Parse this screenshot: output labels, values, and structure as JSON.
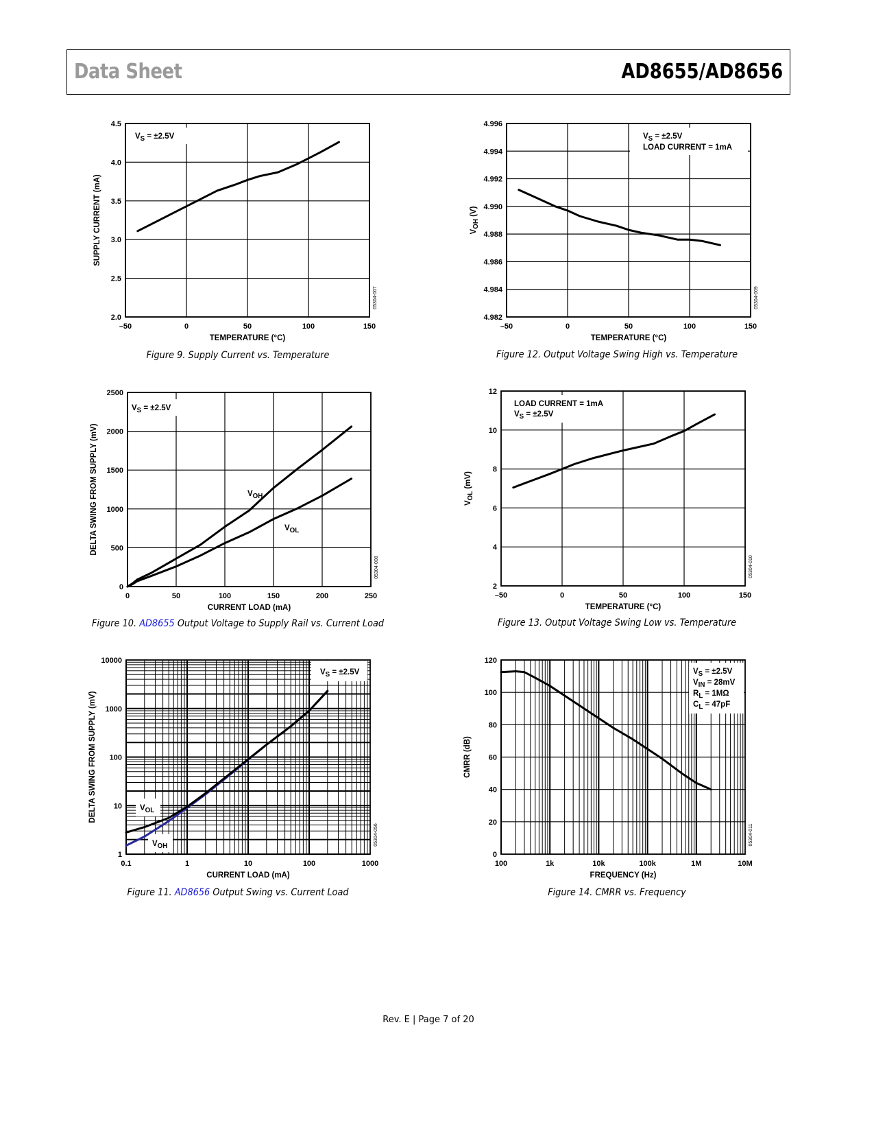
{
  "header": {
    "left": "Data Sheet",
    "right": "AD8655/AD8656"
  },
  "footer": "Rev. E | Page 7 of 20",
  "captions": [
    {
      "pre": "Figure 9. Supply Current vs. Temperature",
      "link": "",
      "post": ""
    },
    {
      "pre": "Figure 12. Output Voltage Swing High vs. Temperature",
      "link": "",
      "post": ""
    },
    {
      "pre": "Figure 10. ",
      "link": "AD8655",
      "post": " Output Voltage to Supply Rail vs. Current Load"
    },
    {
      "pre": "Figure 13. Output Voltage Swing Low vs. Temperature",
      "link": "",
      "post": ""
    },
    {
      "pre": "Figure 11. ",
      "link": "AD8656",
      "post": " Output Swing vs. Current Load"
    },
    {
      "pre": "Figure 14. CMRR vs. Frequency",
      "link": "",
      "post": ""
    }
  ],
  "colors": {
    "link": "#1a1ad6",
    "line": "#000000",
    "voh_blue": "#2a2a9c",
    "header_gray": "#9a9a9a"
  },
  "chart_data": [
    {
      "type": "line",
      "title": "Figure 9. Supply Current vs. Temperature",
      "xlabel": "TEMPERATURE (°C)",
      "ylabel": "SUPPLY CURRENT (mA)",
      "xscale": "linear",
      "yscale": "linear",
      "xlim": [
        -50,
        150
      ],
      "ylim": [
        2.0,
        4.5
      ],
      "xticks": [
        -50,
        0,
        50,
        100,
        150
      ],
      "xtick_labels": [
        "–50",
        "0",
        "50",
        "100",
        "150"
      ],
      "yticks": [
        2.0,
        2.5,
        3.0,
        3.5,
        4.0,
        4.5
      ],
      "ytick_labels": [
        "2.0",
        "2.5",
        "3.0",
        "3.5",
        "4.0",
        "4.5"
      ],
      "grid": true,
      "code": "05304-007",
      "annotations": [
        [
          {
            "t": "V"
          },
          {
            "t": "S",
            "sub": true
          },
          {
            "t": " = ±2.5V"
          }
        ]
      ],
      "series": [
        {
          "name": "Supply Current",
          "color": "#000000",
          "x": [
            -40,
            -25,
            -10,
            0,
            10,
            25,
            40,
            50,
            60,
            75,
            90,
            100,
            110,
            125
          ],
          "y": [
            3.11,
            3.23,
            3.35,
            3.43,
            3.51,
            3.63,
            3.71,
            3.77,
            3.82,
            3.87,
            3.97,
            4.05,
            4.13,
            4.26
          ]
        }
      ]
    },
    {
      "type": "line",
      "title": "Figure 12. Output Voltage Swing High vs. Temperature",
      "xlabel": "TEMPERATURE (°C)",
      "ylabel": [
        {
          "t": "V"
        },
        {
          "t": "OH",
          "sub": true
        },
        {
          "t": " (V)"
        }
      ],
      "xscale": "linear",
      "yscale": "linear",
      "xlim": [
        -50,
        150
      ],
      "ylim": [
        4.982,
        4.996
      ],
      "xticks": [
        -50,
        0,
        50,
        100,
        150
      ],
      "xtick_labels": [
        "–50",
        "0",
        "50",
        "100",
        "150"
      ],
      "yticks": [
        4.982,
        4.984,
        4.986,
        4.988,
        4.99,
        4.992,
        4.994,
        4.996
      ],
      "ytick_labels": [
        "4.982",
        "4.984",
        "4.986",
        "4.988",
        "4.990",
        "4.992",
        "4.994",
        "4.996"
      ],
      "grid": true,
      "code": "05304-009",
      "annotations": [
        [
          {
            "t": "V"
          },
          {
            "t": "S",
            "sub": true
          },
          {
            "t": " = ±2.5V"
          }
        ],
        [
          {
            "t": "LOAD CURRENT = 1mA"
          }
        ]
      ],
      "series": [
        {
          "name": "VOH",
          "color": "#000000",
          "x": [
            -40,
            -25,
            -10,
            0,
            10,
            25,
            40,
            50,
            60,
            75,
            90,
            100,
            110,
            125
          ],
          "y": [
            4.9912,
            4.9906,
            4.99,
            4.9897,
            4.9893,
            4.9889,
            4.9886,
            4.9883,
            4.9881,
            4.9879,
            4.9876,
            4.9876,
            4.9875,
            4.9872
          ]
        }
      ]
    },
    {
      "type": "line",
      "title": "Figure 10. AD8655 Output Voltage to Supply Rail vs. Current Load",
      "xlabel": "CURRENT LOAD (mA)",
      "ylabel": "DELTA SWING FROM SUPPLY (mV)",
      "xscale": "linear",
      "yscale": "linear",
      "xlim": [
        0,
        250
      ],
      "ylim": [
        0,
        2500
      ],
      "xticks": [
        0,
        50,
        100,
        150,
        200,
        250
      ],
      "xtick_labels": [
        "0",
        "50",
        "100",
        "150",
        "200",
        "250"
      ],
      "yticks": [
        0,
        500,
        1000,
        1500,
        2000,
        2500
      ],
      "ytick_labels": [
        "0",
        "500",
        "1000",
        "1500",
        "2000",
        "2500"
      ],
      "grid": true,
      "code": "05304-008",
      "annotations": [
        [
          {
            "t": "V"
          },
          {
            "t": "S",
            "sub": true
          },
          {
            "t": " = ±2.5V"
          }
        ],
        [
          {
            "t": "V"
          },
          {
            "t": "OH",
            "sub": true
          }
        ],
        [
          {
            "t": "V"
          },
          {
            "t": "OL",
            "sub": true
          }
        ]
      ],
      "series": [
        {
          "name": "VOH",
          "color": "#000000",
          "x": [
            0,
            5,
            10,
            25,
            50,
            75,
            100,
            125,
            150,
            175,
            200,
            230
          ],
          "y": [
            0,
            40,
            90,
            180,
            360,
            540,
            770,
            980,
            1270,
            1520,
            1760,
            2060
          ]
        },
        {
          "name": "VOL",
          "color": "#000000",
          "x": [
            0,
            5,
            10,
            25,
            50,
            75,
            100,
            125,
            150,
            175,
            200,
            230
          ],
          "y": [
            0,
            30,
            70,
            140,
            260,
            400,
            560,
            700,
            870,
            1010,
            1170,
            1390
          ]
        }
      ]
    },
    {
      "type": "line",
      "title": "Figure 13. Output Voltage Swing Low vs. Temperature",
      "xlabel": "TEMPERATURE (°C)",
      "ylabel": [
        {
          "t": "V"
        },
        {
          "t": "OL",
          "sub": true
        },
        {
          "t": " (mV)"
        }
      ],
      "xscale": "linear",
      "yscale": "linear",
      "xlim": [
        -50,
        150
      ],
      "ylim": [
        2,
        12
      ],
      "xticks": [
        -50,
        0,
        50,
        100,
        150
      ],
      "xtick_labels": [
        "–50",
        "0",
        "50",
        "100",
        "150"
      ],
      "yticks": [
        2,
        4,
        6,
        8,
        10,
        12
      ],
      "ytick_labels": [
        "2",
        "4",
        "6",
        "8",
        "10",
        "12"
      ],
      "grid": true,
      "code": "05304-010",
      "annotations": [
        [
          {
            "t": "LOAD CURRENT = 1mA"
          }
        ],
        [
          {
            "t": "V"
          },
          {
            "t": "S",
            "sub": true
          },
          {
            "t": " = ±2.5V"
          }
        ]
      ],
      "series": [
        {
          "name": "VOL",
          "color": "#000000",
          "x": [
            -40,
            -25,
            -10,
            0,
            10,
            25,
            50,
            75,
            90,
            100,
            110,
            125
          ],
          "y": [
            7.05,
            7.4,
            7.75,
            8.0,
            8.25,
            8.55,
            8.95,
            9.3,
            9.7,
            9.95,
            10.3,
            10.8
          ]
        }
      ]
    },
    {
      "type": "line",
      "title": "Figure 11. AD8656 Output Swing vs. Current Load",
      "xlabel": "CURRENT LOAD (mA)",
      "ylabel": "DELTA SWING FROM SUPPLY (mV)",
      "xscale": "log",
      "yscale": "log",
      "xlim": [
        0.1,
        1000
      ],
      "ylim": [
        1,
        10000
      ],
      "xticks": [
        0.1,
        1,
        10,
        100,
        1000
      ],
      "xtick_labels": [
        "0.1",
        "1",
        "10",
        "100",
        "1000"
      ],
      "yticks": [
        1,
        10,
        100,
        1000,
        10000
      ],
      "ytick_labels": [
        "1",
        "10",
        "100",
        "1000",
        "10000"
      ],
      "grid": true,
      "code": "05304-056",
      "annotations": [
        [
          {
            "t": "V"
          },
          {
            "t": "S",
            "sub": true
          },
          {
            "t": " = ±2.5V"
          }
        ],
        [
          {
            "t": "V"
          },
          {
            "t": "OL",
            "sub": true
          }
        ],
        [
          {
            "t": "V"
          },
          {
            "t": "OH",
            "sub": true
          }
        ]
      ],
      "series": [
        {
          "name": "VOH",
          "color": "#2a2a9c",
          "x": [
            0.1,
            0.2,
            0.5,
            1,
            2,
            5,
            10,
            20,
            50,
            100,
            200
          ],
          "y": [
            1.5,
            2.3,
            4.8,
            9,
            17,
            43,
            88,
            180,
            430,
            900,
            2300
          ]
        },
        {
          "name": "VOL",
          "color": "#000000",
          "x": [
            0.1,
            0.2,
            0.5,
            1,
            2,
            5,
            10,
            20,
            50,
            100,
            200
          ],
          "y": [
            2.8,
            3.6,
            5.6,
            9.5,
            18,
            45,
            90,
            180,
            430,
            900,
            2300
          ]
        }
      ]
    },
    {
      "type": "line",
      "title": "Figure 14. CMRR vs. Frequency",
      "xlabel": "FREQUENCY (Hz)",
      "ylabel": "CMRR (dB)",
      "xscale": "log",
      "yscale": "linear",
      "xlim": [
        100,
        10000000
      ],
      "ylim": [
        0,
        120
      ],
      "xticks": [
        100,
        1000,
        10000,
        100000,
        1000000,
        10000000
      ],
      "xtick_labels": [
        "100",
        "1k",
        "10k",
        "100k",
        "1M",
        "10M"
      ],
      "yticks": [
        0,
        20,
        40,
        60,
        80,
        100,
        120
      ],
      "ytick_labels": [
        "0",
        "20",
        "40",
        "60",
        "80",
        "100",
        "120"
      ],
      "grid": true,
      "code": "05304-011",
      "annotations": [
        [
          {
            "t": "V"
          },
          {
            "t": "S",
            "sub": true
          },
          {
            "t": " = ±2.5V"
          }
        ],
        [
          {
            "t": "V"
          },
          {
            "t": "IN",
            "sub": true
          },
          {
            "t": " = 28mV"
          }
        ],
        [
          {
            "t": "R"
          },
          {
            "t": "L",
            "sub": true
          },
          {
            "t": " = 1MΩ"
          }
        ],
        [
          {
            "t": "C"
          },
          {
            "t": "L",
            "sub": true
          },
          {
            "t": " = 47pF"
          }
        ]
      ],
      "series": [
        {
          "name": "CMRR",
          "color": "#000000",
          "x": [
            100,
            200,
            300,
            500,
            1000,
            2000,
            5000,
            10000,
            20000,
            50000,
            100000,
            200000,
            500000,
            1000000,
            2000000
          ],
          "y": [
            112.5,
            113,
            112.5,
            109,
            104,
            98,
            90,
            84,
            78,
            71,
            65,
            59,
            50,
            44,
            40
          ]
        }
      ]
    }
  ]
}
